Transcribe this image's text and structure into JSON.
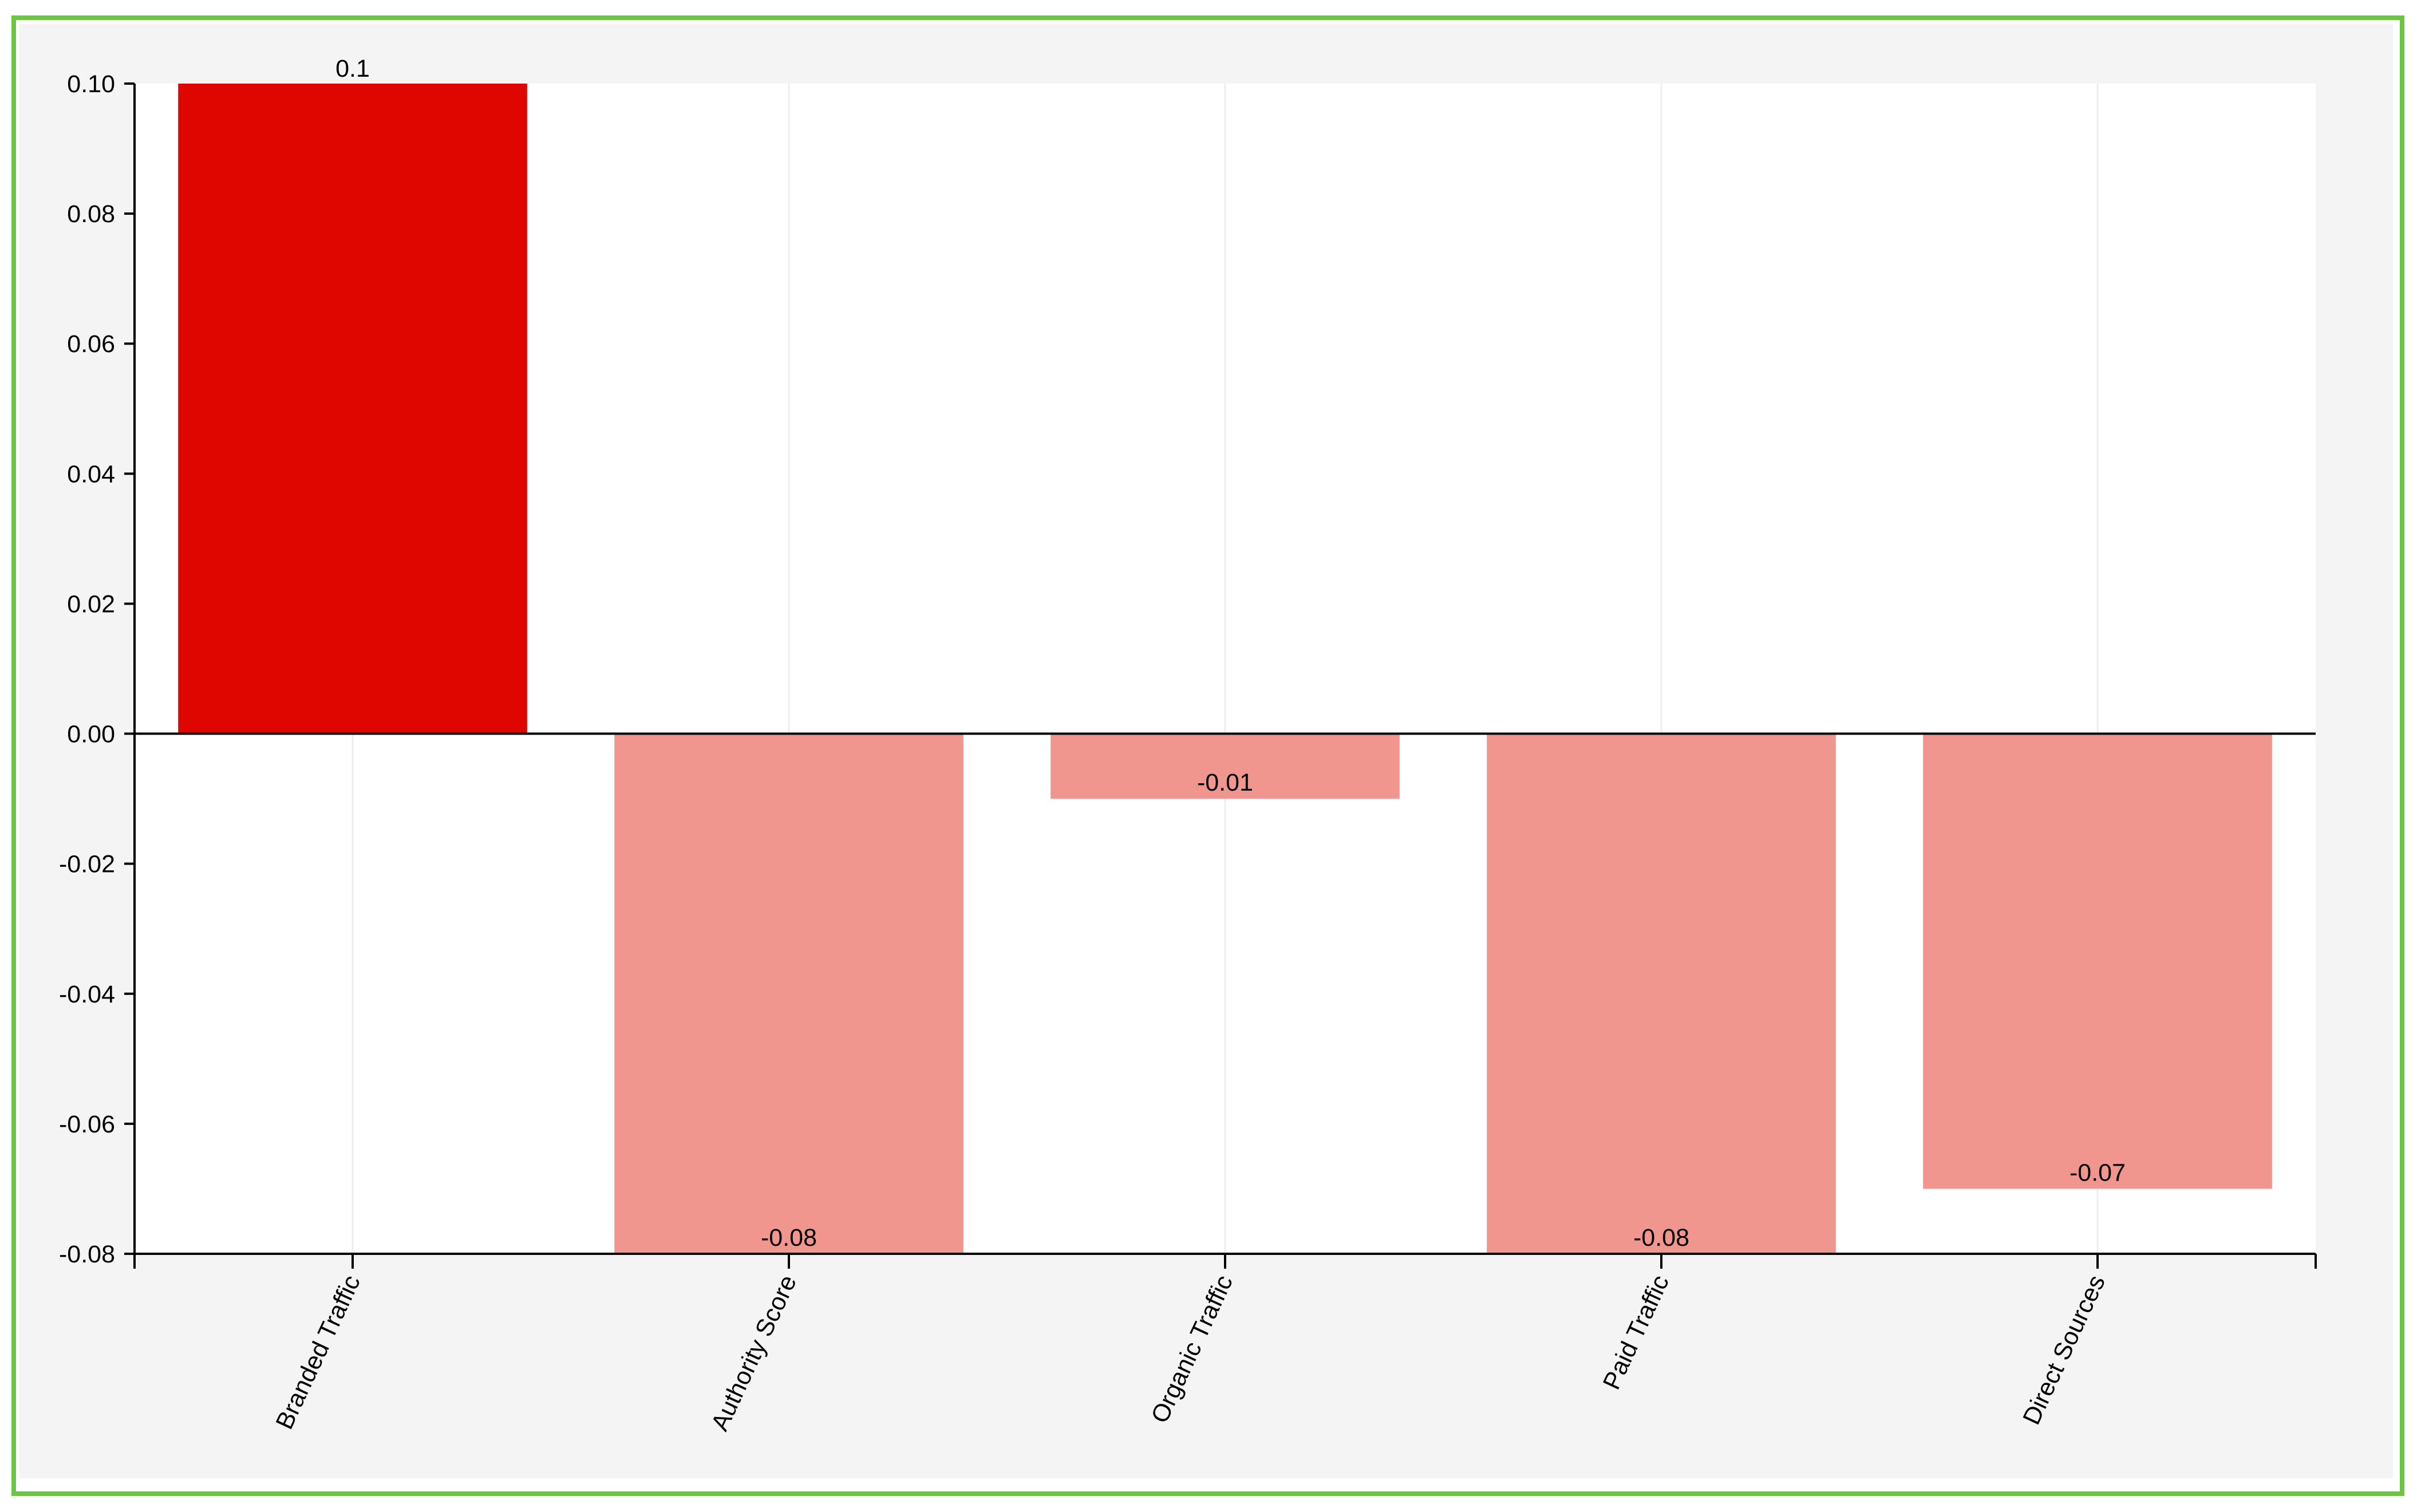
{
  "chart_data": {
    "type": "bar",
    "categories": [
      "Branded Traffic",
      "Authority Score",
      "Organic Traffic",
      "Paid Traffic",
      "Direct Sources"
    ],
    "values": [
      0.1,
      -0.08,
      -0.01,
      -0.08,
      -0.07
    ],
    "value_labels": [
      "0.1",
      "-0.08",
      "-0.01",
      "-0.08",
      "-0.07"
    ],
    "ylim": [
      -0.08,
      0.1
    ],
    "yticks": [
      0.1,
      0.08,
      0.06,
      0.04,
      0.02,
      0.0,
      -0.02,
      -0.04,
      -0.06,
      -0.08
    ],
    "ytick_labels": [
      "0.10",
      "0.08",
      "0.06",
      "0.04",
      "0.02",
      "0.00",
      "-0.02",
      "-0.04",
      "-0.06",
      "-0.08"
    ],
    "title": "",
    "xlabel": "",
    "ylabel": "",
    "grid": "vertical",
    "legend": "none",
    "colors": {
      "positive": "#e00600",
      "negative": "#f1968e",
      "frame_border": "#6cc644",
      "panel_background": "#f4f4f4",
      "plot_background": "#ffffff",
      "gridline": "#eeeeee"
    }
  }
}
